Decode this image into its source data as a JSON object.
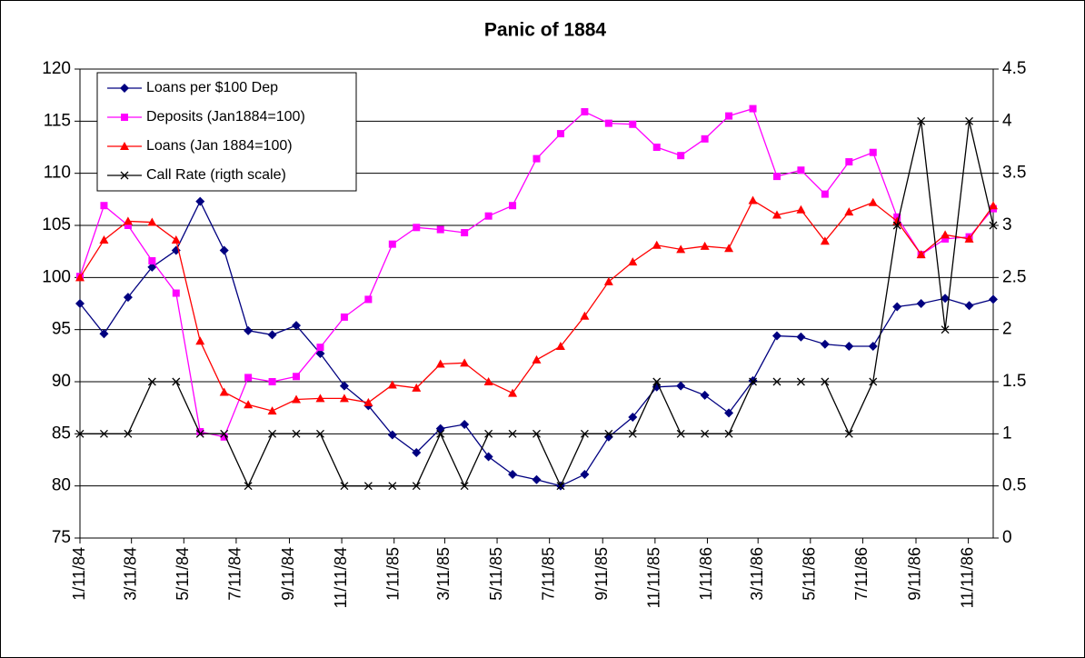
{
  "chart_data": {
    "type": "line",
    "title": "Panic of 1884",
    "x": [
      0,
      28,
      56,
      84,
      112,
      140,
      168,
      196,
      224,
      252,
      280,
      308,
      336,
      364,
      392,
      420,
      448,
      476,
      504,
      532,
      560,
      588,
      616,
      644,
      672,
      700,
      728,
      756,
      784,
      812,
      840,
      868,
      896,
      924,
      952,
      980,
      1008,
      1036,
      1064
    ],
    "xlim": [
      0,
      1064
    ],
    "xticks": [
      {
        "value": 0,
        "label": "1/11/84"
      },
      {
        "value": 60,
        "label": "3/11/84"
      },
      {
        "value": 121,
        "label": "5/11/84"
      },
      {
        "value": 182,
        "label": "7/11/84"
      },
      {
        "value": 244,
        "label": "9/11/84"
      },
      {
        "value": 305,
        "label": "11/11/84"
      },
      {
        "value": 366,
        "label": "1/11/85"
      },
      {
        "value": 425,
        "label": "3/11/85"
      },
      {
        "value": 486,
        "label": "5/11/85"
      },
      {
        "value": 547,
        "label": "7/11/85"
      },
      {
        "value": 609,
        "label": "9/11/85"
      },
      {
        "value": 670,
        "label": "11/11/85"
      },
      {
        "value": 731,
        "label": "1/11/86"
      },
      {
        "value": 790,
        "label": "3/11/86"
      },
      {
        "value": 851,
        "label": "5/11/86"
      },
      {
        "value": 912,
        "label": "7/11/86"
      },
      {
        "value": 974,
        "label": "9/11/86"
      },
      {
        "value": 1035,
        "label": "11/11/86"
      }
    ],
    "ylim": [
      75,
      120
    ],
    "yticks": [
      75,
      80,
      85,
      90,
      95,
      100,
      105,
      110,
      115,
      120
    ],
    "y2lim": [
      0,
      4.5
    ],
    "y2ticks": [
      0,
      0.5,
      1,
      1.5,
      2,
      2.5,
      3,
      3.5,
      4,
      4.5
    ],
    "grid": true,
    "legend": "upper left",
    "series": [
      {
        "name": "Loans per $100 Dep",
        "color": "#000080",
        "marker": "diamond",
        "values": [
          97.5,
          94.6,
          98.1,
          101.0,
          102.6,
          107.3,
          102.6,
          94.9,
          94.5,
          95.4,
          92.7,
          89.6,
          87.7,
          84.9,
          83.2,
          85.5,
          85.9,
          82.8,
          81.1,
          80.6,
          80.0,
          81.1,
          84.7,
          86.6,
          89.5,
          89.6,
          88.7,
          87.0,
          90.1,
          94.4,
          94.3,
          93.6,
          93.4,
          93.4,
          97.2,
          97.5,
          98.0,
          97.3,
          97.9
        ]
      },
      {
        "name": "Deposits (Jan1884=100)",
        "color": "#ff00ff",
        "marker": "square",
        "values": [
          100.1,
          106.9,
          105.0,
          101.6,
          98.5,
          85.2,
          84.7,
          90.4,
          90.0,
          90.5,
          93.3,
          96.2,
          97.9,
          103.2,
          104.8,
          104.6,
          104.3,
          105.9,
          106.9,
          111.4,
          113.8,
          115.9,
          114.8,
          114.7,
          112.5,
          111.7,
          113.3,
          115.5,
          116.2,
          109.7,
          110.3,
          108.0,
          111.1,
          112.0,
          105.8,
          102.2,
          103.7,
          103.9,
          106.6
        ]
      },
      {
        "name": "Loans (Jan 1884=100)",
        "color": "#ff0000",
        "marker": "triangle",
        "values": [
          100.0,
          103.6,
          105.4,
          105.3,
          103.6,
          93.9,
          89.0,
          87.8,
          87.2,
          88.3,
          88.4,
          88.4,
          88.0,
          89.7,
          89.4,
          91.7,
          91.8,
          90.0,
          88.9,
          92.1,
          93.4,
          96.3,
          99.6,
          101.5,
          103.1,
          102.7,
          103.0,
          102.8,
          107.4,
          106.0,
          106.5,
          103.5,
          106.3,
          107.2,
          105.4,
          102.2,
          104.1,
          103.7,
          106.9
        ]
      },
      {
        "name": "Call Rate (rigth scale)",
        "color": "#000000",
        "marker": "x",
        "axis": "y2",
        "values": [
          1,
          1,
          1,
          1.5,
          1.5,
          1,
          1,
          0.5,
          1,
          1,
          1,
          0.5,
          0.5,
          0.5,
          0.5,
          1,
          0.5,
          1,
          1,
          1,
          0.5,
          1,
          1,
          1,
          1.5,
          1,
          1,
          1,
          1.5,
          1.5,
          1.5,
          1.5,
          1,
          1.5,
          3,
          4,
          2,
          4,
          3
        ]
      }
    ]
  }
}
